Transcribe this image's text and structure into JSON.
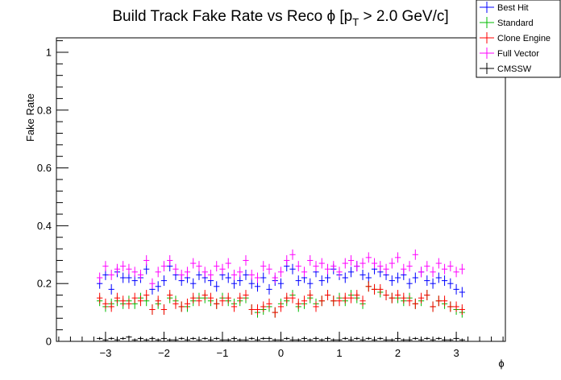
{
  "chart_data": {
    "type": "scatter",
    "title": "Build Track Fake Rate vs Reco ϕ [p",
    "title_sub": "T",
    "title_end": " > 2.0 GeV/c]",
    "xlabel": "ϕ",
    "ylabel": "Fake Rate",
    "xlim": [
      -3.84,
      3.84
    ],
    "ylim": [
      0,
      1.05
    ],
    "xticks": [
      -3,
      -2,
      -1,
      0,
      1,
      2,
      3
    ],
    "xtick_labels": [
      "−3",
      "−2",
      "−1",
      "0",
      "1",
      "2",
      "3"
    ],
    "yticks": [
      0,
      0.2,
      0.4,
      0.6,
      0.8,
      1
    ],
    "ytick_labels": [
      "0",
      "0.2",
      "0.4",
      "0.6",
      "0.8",
      "1"
    ],
    "grid": false,
    "legend_position": "top-right",
    "x": [
      -3.1,
      -3.0,
      -2.9,
      -2.8,
      -2.7,
      -2.6,
      -2.5,
      -2.4,
      -2.3,
      -2.2,
      -2.1,
      -2.0,
      -1.9,
      -1.8,
      -1.7,
      -1.6,
      -1.5,
      -1.4,
      -1.3,
      -1.2,
      -1.1,
      -1.0,
      -0.9,
      -0.8,
      -0.7,
      -0.6,
      -0.5,
      -0.4,
      -0.3,
      -0.2,
      -0.1,
      0.0,
      0.1,
      0.2,
      0.3,
      0.4,
      0.5,
      0.6,
      0.7,
      0.8,
      0.9,
      1.0,
      1.1,
      1.2,
      1.3,
      1.4,
      1.5,
      1.6,
      1.7,
      1.8,
      1.9,
      2.0,
      2.1,
      2.2,
      2.3,
      2.4,
      2.5,
      2.6,
      2.7,
      2.8,
      2.9,
      3.0,
      3.1
    ],
    "series": [
      {
        "name": "Best Hit",
        "color": "#0000ff",
        "values": [
          0.2,
          0.23,
          0.18,
          0.24,
          0.22,
          0.22,
          0.21,
          0.22,
          0.25,
          0.18,
          0.19,
          0.21,
          0.26,
          0.23,
          0.21,
          0.22,
          0.2,
          0.23,
          0.22,
          0.21,
          0.19,
          0.23,
          0.22,
          0.2,
          0.21,
          0.23,
          0.2,
          0.19,
          0.22,
          0.18,
          0.21,
          0.2,
          0.26,
          0.25,
          0.21,
          0.22,
          0.2,
          0.24,
          0.21,
          0.22,
          0.25,
          0.23,
          0.22,
          0.24,
          0.26,
          0.23,
          0.22,
          0.25,
          0.24,
          0.23,
          0.21,
          0.22,
          0.23,
          0.2,
          0.22,
          0.24,
          0.21,
          0.2,
          0.22,
          0.21,
          0.2,
          0.18,
          0.17
        ]
      },
      {
        "name": "Standard",
        "color": "#00bb00",
        "values": [
          0.14,
          0.12,
          0.13,
          0.14,
          0.13,
          0.14,
          0.13,
          0.15,
          0.14,
          0.11,
          0.13,
          0.11,
          0.15,
          0.14,
          0.12,
          0.12,
          0.14,
          0.15,
          0.15,
          0.14,
          0.13,
          0.15,
          0.14,
          0.13,
          0.14,
          0.15,
          0.11,
          0.1,
          0.11,
          0.12,
          0.1,
          0.13,
          0.14,
          0.16,
          0.12,
          0.13,
          0.15,
          0.13,
          0.14,
          0.16,
          0.14,
          0.15,
          0.14,
          0.16,
          0.15,
          0.13,
          0.19,
          0.18,
          0.17,
          0.16,
          0.15,
          0.15,
          0.14,
          0.15,
          0.13,
          0.14,
          0.16,
          0.12,
          0.14,
          0.13,
          0.12,
          0.11,
          0.1
        ]
      },
      {
        "name": "Clone Engine",
        "color": "#ff0000",
        "values": [
          0.15,
          0.13,
          0.12,
          0.15,
          0.14,
          0.13,
          0.15,
          0.14,
          0.16,
          0.11,
          0.14,
          0.11,
          0.16,
          0.13,
          0.12,
          0.13,
          0.15,
          0.14,
          0.16,
          0.15,
          0.13,
          0.14,
          0.15,
          0.12,
          0.15,
          0.16,
          0.11,
          0.11,
          0.12,
          0.13,
          0.1,
          0.12,
          0.15,
          0.15,
          0.13,
          0.14,
          0.16,
          0.12,
          0.14,
          0.16,
          0.14,
          0.14,
          0.15,
          0.15,
          0.16,
          0.14,
          0.19,
          0.18,
          0.18,
          0.16,
          0.15,
          0.16,
          0.15,
          0.14,
          0.13,
          0.15,
          0.16,
          0.12,
          0.14,
          0.14,
          0.12,
          0.12,
          0.11
        ]
      },
      {
        "name": "Full Vector",
        "color": "#ff00ff",
        "values": [
          0.22,
          0.26,
          0.23,
          0.25,
          0.26,
          0.25,
          0.24,
          0.23,
          0.28,
          0.2,
          0.24,
          0.26,
          0.28,
          0.25,
          0.23,
          0.24,
          0.27,
          0.26,
          0.24,
          0.23,
          0.26,
          0.25,
          0.27,
          0.23,
          0.24,
          0.28,
          0.23,
          0.22,
          0.26,
          0.25,
          0.22,
          0.24,
          0.28,
          0.3,
          0.26,
          0.24,
          0.28,
          0.26,
          0.27,
          0.25,
          0.26,
          0.24,
          0.27,
          0.28,
          0.26,
          0.27,
          0.29,
          0.27,
          0.26,
          0.25,
          0.27,
          0.29,
          0.25,
          0.26,
          0.3,
          0.24,
          0.26,
          0.24,
          0.27,
          0.25,
          0.26,
          0.24,
          0.25
        ]
      },
      {
        "name": "CMSSW",
        "color": "#000000",
        "values": [
          0.01,
          0.005,
          0.01,
          0.005,
          0.01,
          0.015,
          0.005,
          0.01,
          0.005,
          0.01,
          0.005,
          0.01,
          0.005,
          0.005,
          0.01,
          0.005,
          0.01,
          0.005,
          0.01,
          0.005,
          0.01,
          0.005,
          0.005,
          0.01,
          0.005,
          0.005,
          0.01,
          0.005,
          0.01,
          0.01,
          0.005,
          0.005,
          0.01,
          0.005,
          0.005,
          0.01,
          0.005,
          0.01,
          0.005,
          0.01,
          0.005,
          0.005,
          0.01,
          0.005,
          0.01,
          0.005,
          0.01,
          0.005,
          0.01,
          0.005,
          0.005,
          0.01,
          0.005,
          0.005,
          0.01,
          0.005,
          0.01,
          0.005,
          0.01,
          0.005,
          0.005,
          0.01,
          0.005
        ]
      }
    ]
  }
}
